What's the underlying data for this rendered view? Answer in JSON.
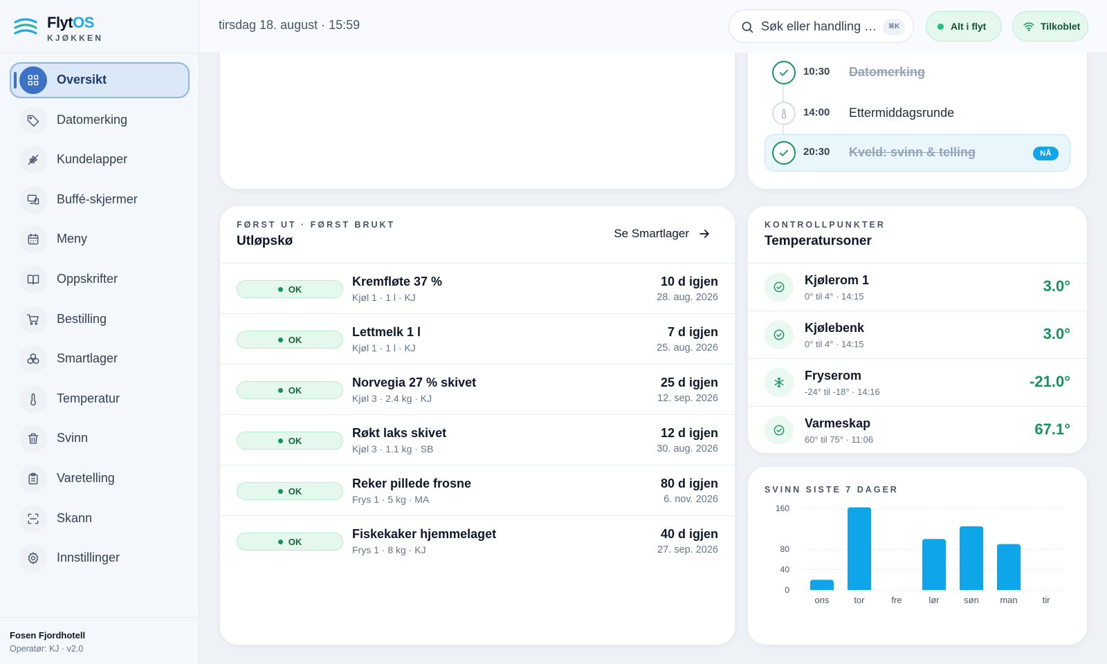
{
  "brand": {
    "name_main": "Flyt",
    "name_accent": "OS",
    "subtitle": "KJØKKEN"
  },
  "colors": {
    "accent": "#3b72c6",
    "ok": "#15935a",
    "bar": "#0ea5e9"
  },
  "nav": [
    {
      "label": "Oversikt",
      "icon": "grid-icon",
      "active": true
    },
    {
      "label": "Datomerking",
      "icon": "tag-icon"
    },
    {
      "label": "Kundelapper",
      "icon": "wheat-icon"
    },
    {
      "label": "Buffé-skjermer",
      "icon": "monitor-icon"
    },
    {
      "label": "Meny",
      "icon": "calendar-icon"
    },
    {
      "label": "Oppskrifter",
      "icon": "book-icon"
    },
    {
      "label": "Bestilling",
      "icon": "cart-icon"
    },
    {
      "label": "Smartlager",
      "icon": "boxes-icon"
    },
    {
      "label": "Temperatur",
      "icon": "thermometer-icon"
    },
    {
      "label": "Svinn",
      "icon": "trash-icon"
    },
    {
      "label": "Varetelling",
      "icon": "clipboard-icon"
    },
    {
      "label": "Skann",
      "icon": "scan-icon"
    },
    {
      "label": "Innstillinger",
      "icon": "gear-icon"
    }
  ],
  "footer": {
    "hotel": "Fosen Fjordhotell",
    "operator": "Operatør: KJ · v2.0"
  },
  "topbar": {
    "datetime": "tirsdag 18. august · 15:59",
    "search_placeholder": "Søk eller handling …",
    "search_shortcut": "⌘K",
    "status_flow": "Alt i flyt",
    "status_connection": "Tilkoblet"
  },
  "schedule": [
    {
      "time": "10:30",
      "name": "Datomerking",
      "done": true,
      "now": false
    },
    {
      "time": "14:00",
      "name": "Ettermiddagsrunde",
      "done": false,
      "now": false
    },
    {
      "time": "20:30",
      "name": "Kveld: svinn & telling",
      "done": true,
      "now": true,
      "badge": "NÅ"
    }
  ],
  "fifo": {
    "eyebrow": "FØRST UT · FØRST BRUKT",
    "title": "Utløpskø",
    "link": "Se Smartlager",
    "items": [
      {
        "status": "OK",
        "name": "Kremfløte 37 %",
        "meta": "Kjøl 1 · 1 l · KJ",
        "days": "10 d igjen",
        "date": "28. aug. 2026"
      },
      {
        "status": "OK",
        "name": "Lettmelk 1 l",
        "meta": "Kjøl 1 · 1 l · KJ",
        "days": "7 d igjen",
        "date": "25. aug. 2026"
      },
      {
        "status": "OK",
        "name": "Norvegia 27 % skivet",
        "meta": "Kjøl 3 · 2.4 kg · KJ",
        "days": "25 d igjen",
        "date": "12. sep. 2026"
      },
      {
        "status": "OK",
        "name": "Røkt laks skivet",
        "meta": "Kjøl 3 · 1.1 kg · SB",
        "days": "12 d igjen",
        "date": "30. aug. 2026"
      },
      {
        "status": "OK",
        "name": "Reker pillede frosne",
        "meta": "Frys 1 · 5 kg · MA",
        "days": "80 d igjen",
        "date": "6. nov. 2026"
      },
      {
        "status": "OK",
        "name": "Fiskekaker hjemmelaget",
        "meta": "Frys 1 · 8 kg · KJ",
        "days": "40 d igjen",
        "date": "27. sep. 2026"
      }
    ]
  },
  "temperature": {
    "eyebrow": "KONTROLLPUNKTER",
    "title": "Temperatursoner",
    "zones": [
      {
        "name": "Kjølerom 1",
        "meta": "0° til 4° · 14:15",
        "value": "3.0°",
        "icon": "check-circle-icon"
      },
      {
        "name": "Kjølebenk",
        "meta": "0° til 4° · 14:15",
        "value": "3.0°",
        "icon": "check-circle-icon"
      },
      {
        "name": "Fryserom",
        "meta": "-24° til -18° · 14:16",
        "value": "-21.0°",
        "icon": "snowflake-icon"
      },
      {
        "name": "Varmeskap",
        "meta": "60° til 75° · 11:06",
        "value": "67.1°",
        "icon": "check-circle-icon"
      }
    ]
  },
  "waste": {
    "eyebrow": "SVINN SISTE 7 DAGER"
  },
  "chart_data": {
    "type": "bar",
    "categories": [
      "ons",
      "tor",
      "fre",
      "lør",
      "søn",
      "man",
      "tir"
    ],
    "values": [
      20,
      162,
      0,
      100,
      125,
      90,
      0
    ],
    "yticks": [
      0,
      40,
      80,
      160
    ],
    "ylim": [
      0,
      160
    ],
    "grid": true,
    "title": "SVINN SISTE 7 DAGER"
  }
}
